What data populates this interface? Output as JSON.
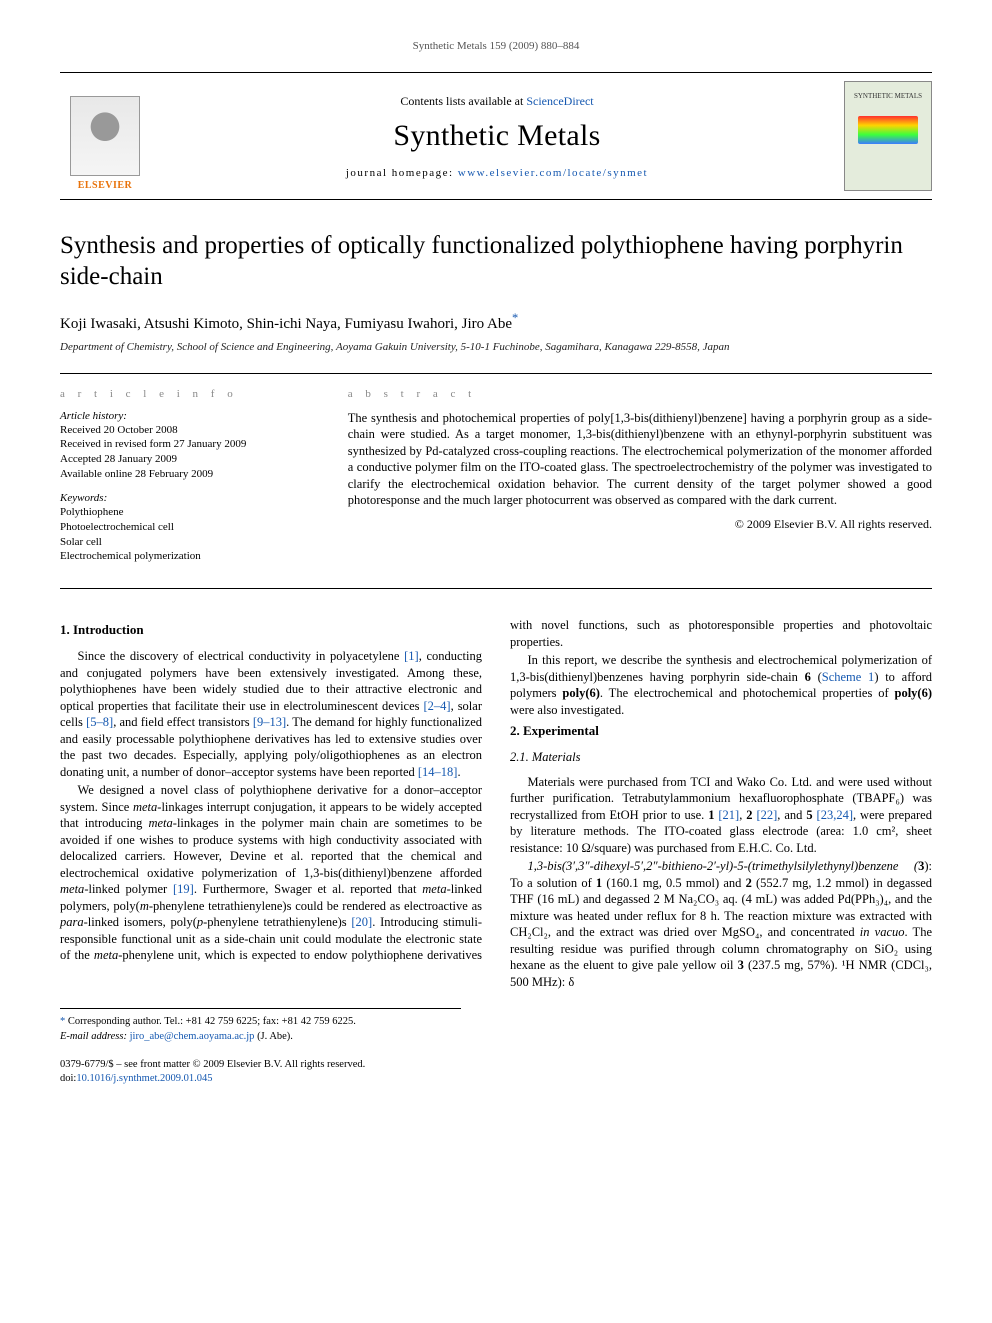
{
  "running_header": "Synthetic Metals 159 (2009) 880–884",
  "masthead": {
    "publisher_name": "ELSEVIER",
    "contents_prefix": "Contents lists available at ",
    "contents_link_text": "ScienceDirect",
    "journal_name": "Synthetic Metals",
    "homepage_prefix": "journal homepage: ",
    "homepage_link_text": "www.elsevier.com/locate/synmet",
    "cover_label": "SYNTHETIC METALS"
  },
  "article": {
    "title": "Synthesis and properties of optically functionalized polythiophene having porphyrin side-chain",
    "authors": "Koji Iwasaki, Atsushi Kimoto, Shin-ichi Naya, Fumiyasu Iwahori, Jiro Abe",
    "corr_marker": "*",
    "affiliation": "Department of Chemistry, School of Science and Engineering, Aoyama Gakuin University, 5-10-1 Fuchinobe, Sagamihara, Kanagawa 229-8558, Japan"
  },
  "info": {
    "heading": "a r t i c l e   i n f o",
    "history_label": "Article history:",
    "history": [
      "Received 20 October 2008",
      "Received in revised form 27 January 2009",
      "Accepted 28 January 2009",
      "Available online 28 February 2009"
    ],
    "keywords_label": "Keywords:",
    "keywords": [
      "Polythiophene",
      "Photoelectrochemical cell",
      "Solar cell",
      "Electrochemical polymerization"
    ]
  },
  "abstract": {
    "heading": "a b s t r a c t",
    "text": "The synthesis and photochemical properties of poly[1,3-bis(dithienyl)benzene] having a porphyrin group as a side-chain were studied. As a target monomer, 1,3-bis(dithienyl)benzene with an ethynyl-porphyrin substituent was synthesized by Pd-catalyzed cross-coupling reactions. The electrochemical polymerization of the monomer afforded a conductive polymer film on the ITO-coated glass. The spectroelectrochemistry of the polymer was investigated to clarify the electrochemical oxidation behavior. The current density of the target polymer showed a good photoresponse and the much larger photocurrent was observed as compared with the dark current.",
    "copyright": "© 2009 Elsevier B.V. All rights reserved."
  },
  "sections": {
    "s1_heading": "1.  Introduction",
    "s1_p1_a": "Since the discovery of electrical conductivity in polyacetylene ",
    "s1_p1_ref1": "[1]",
    "s1_p1_b": ", conducting and conjugated polymers have been extensively investigated. Among these, polythiophenes have been widely studied due to their attractive electronic and optical properties that facilitate their use in electroluminescent devices ",
    "s1_p1_ref2": "[2–4]",
    "s1_p1_c": ", solar cells ",
    "s1_p1_ref3": "[5–8]",
    "s1_p1_d": ", and field effect transistors ",
    "s1_p1_ref4": "[9–13]",
    "s1_p1_e": ". The demand for highly functionalized and easily processable polythiophene derivatives has led to extensive studies over the past two decades. Especially, applying poly/oligothiophenes as an electron donating unit, a number of donor–acceptor systems have been reported ",
    "s1_p1_ref5": "[14–18]",
    "s1_p1_f": ".",
    "s1_p2_a": "We designed a novel class of polythiophene derivative for a donor–acceptor system. Since ",
    "s1_p2_i1": "meta",
    "s1_p2_b": "-linkages interrupt conjugation, it appears to be widely accepted that introducing ",
    "s1_p2_i2": "meta",
    "s1_p2_c": "-linkages in the polymer main chain are sometimes to be avoided if one wishes to produce systems with high conductivity associated with delocalized carriers. However, Devine et al. reported that the chemical and electrochemical oxidative polymerization of 1,3-bis(dithienyl)benzene afforded ",
    "s1_p2_i3": "meta",
    "s1_p2_d": "-linked polymer ",
    "s1_p2_ref1": "[19]",
    "s1_p2_e": ". Furthermore, Swager et al. reported that ",
    "s1_p2_i4": "meta",
    "s1_p2_f": "-linked polymers, poly(",
    "s1_p2_i5": "m",
    "s1_p2_g": "-phenylene tetrathienylene)s could be rendered as electroactive as ",
    "s1_p2_i6": "para",
    "s1_p2_h": "-linked isomers, poly(",
    "s1_p2_i7": "p",
    "s1_p2_i": "-phenylene tetrathienylene)s ",
    "s1_p2_ref2": "[20]",
    "s1_p2_j": ". Introducing stimuli-responsible functional unit as a side-chain unit could modulate the electronic state of the ",
    "s1_p2_i8": "meta",
    "s1_p2_k": "-phenylene unit, which is expected to endow polythiophene derivatives with novel functions, such as photoresponsible properties and photovoltaic properties.",
    "s1_p3_a": "In this report, we describe the synthesis and electrochemical polymerization of 1,3-bis(dithienyl)benzenes having porphyrin side-chain ",
    "s1_p3_b1": "6",
    "s1_p3_b": " (",
    "s1_p3_ref1": "Scheme 1",
    "s1_p3_c": ") to afford polymers ",
    "s1_p3_b2": "poly(6)",
    "s1_p3_d": ". The electrochemical and photochemical properties of ",
    "s1_p3_b3": "poly(6)",
    "s1_p3_e": " were also investigated.",
    "s2_heading": "2.  Experimental",
    "s21_heading": "2.1.  Materials",
    "s21_p1_a": "Materials were purchased from TCI and Wako Co. Ltd. and were used without further purification. Tetrabutylammonium hexafluorophosphate (TBAPF₆) was recrystallized from EtOH prior to use. ",
    "s21_p1_b1": "1",
    "s21_p1_sp1": " ",
    "s21_p1_ref1": "[21]",
    "s21_p1_b": ", ",
    "s21_p1_b2": "2",
    "s21_p1_sp2": " ",
    "s21_p1_ref2": "[22]",
    "s21_p1_c": ", and ",
    "s21_p1_b3": "5",
    "s21_p1_sp3": " ",
    "s21_p1_ref3": "[23,24]",
    "s21_p1_d": ", were prepared by literature methods. The ITO-coated glass electrode (area: 1.0 cm², sheet resistance: 10 Ω/square) was purchased from E.H.C. Co. Ltd.",
    "s21_p2_name": "1,3-bis(3′,3″-dihexyl-5′,2″-bithieno-2′-yl)-5-(trimethylsilylethynyl)benzene (",
    "s21_p2_b1": "3",
    "s21_p2_a": "): To a solution of ",
    "s21_p2_b2": "1",
    "s21_p2_b": " (160.1 mg, 0.5 mmol) and ",
    "s21_p2_b3": "2",
    "s21_p2_c": " (552.7 mg, 1.2 mmol) in degassed THF (16 mL) and degassed 2 M Na₂CO₃ aq. (4 mL) was added Pd(PPh₃)₄, and the mixture was heated under reflux for 8 h. The reaction mixture was extracted with CH₂Cl₂, and the extract was dried over MgSO₄, and concentrated ",
    "s21_p2_i1": "in vacuo",
    "s21_p2_d": ". The resulting residue was purified through column chromatography on SiO₂ using hexane as the eluent to give pale yellow oil ",
    "s21_p2_b4": "3",
    "s21_p2_e": " (237.5 mg, 57%). ¹H NMR (CDCl₃, 500 MHz): δ"
  },
  "footnote": {
    "marker": "*",
    "line1": " Corresponding author. Tel.: +81 42 759 6225; fax: +81 42 759 6225.",
    "email_label": "E-mail address: ",
    "email": "jiro_abe@chem.aoyama.ac.jp",
    "email_suffix": " (J. Abe)."
  },
  "footer": {
    "line1": "0379-6779/$ – see front matter © 2009 Elsevier B.V. All rights reserved.",
    "doi_prefix": "doi:",
    "doi": "10.1016/j.synthmet.2009.01.045"
  },
  "colors": {
    "link": "#1558b0",
    "publisher_orange": "#e8720a",
    "text": "#000000",
    "muted": "#888888"
  },
  "typography": {
    "body_font": "Times New Roman",
    "title_size_pt": 19,
    "journal_name_size_pt": 22,
    "body_size_pt": 9,
    "abstract_size_pt": 9
  }
}
